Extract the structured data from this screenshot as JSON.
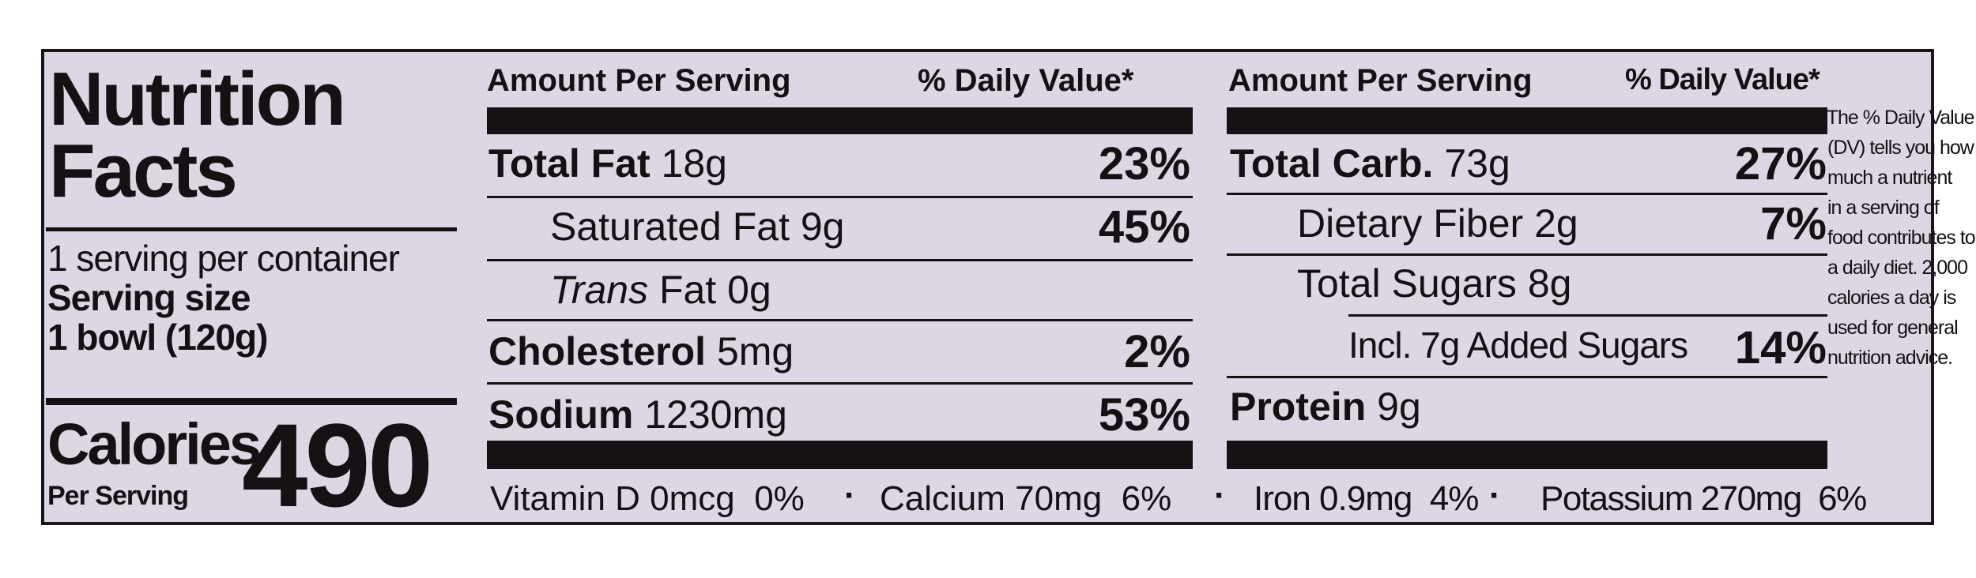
{
  "title": "Nutrition Facts",
  "servings_per_container": "1 serving per container",
  "serving_size_label": "Serving size",
  "serving_size_value": "1 bowl (120g)",
  "calories": {
    "label": "Calories",
    "sublabel": "Per Serving",
    "value": "490"
  },
  "columns": {
    "left": {
      "amount_header": "Amount Per Serving",
      "dv_header": "% Daily Value*"
    },
    "right": {
      "amount_header": "Amount Per Serving",
      "dv_header": "% Daily Value*"
    }
  },
  "nutrients_left": [
    {
      "name": "Total Fat",
      "amount": "18g",
      "dv": "23%"
    },
    {
      "name": "Saturated Fat",
      "amount": "9g",
      "dv": "45%"
    },
    {
      "name": "Trans",
      "name_rest": "Fat",
      "amount": "0g",
      "dv": ""
    },
    {
      "name": "Cholesterol",
      "amount": "5mg",
      "dv": "2%"
    },
    {
      "name": "Sodium",
      "amount": "1230mg",
      "dv": "53%"
    }
  ],
  "nutrients_right": [
    {
      "name": "Total Carb.",
      "amount": "73g",
      "dv": "27%"
    },
    {
      "name": "Dietary Fiber",
      "amount": "2g",
      "dv": "7%"
    },
    {
      "name": "Total Sugars",
      "amount": "8g",
      "dv": ""
    },
    {
      "name": "Incl. 7g Added Sugars",
      "amount": "",
      "dv": "14%"
    },
    {
      "name": "Protein",
      "amount": "9g",
      "dv": ""
    }
  ],
  "vitamins": [
    {
      "text": "Vitamin D 0mcg",
      "dv": "0%"
    },
    {
      "text": "Calcium 70mg",
      "dv": "6%"
    },
    {
      "text": "Iron 0.9mg",
      "dv": "4%"
    },
    {
      "text": "Potassium 270mg",
      "dv": "6%"
    }
  ],
  "separator": "·",
  "footnote": [
    "*The % Daily Value",
    "(DV) tells you how",
    "much a nutrient",
    "in a serving of",
    "food contributes to",
    "a daily diet. 2,000",
    "calories a day is",
    "used for general",
    "nutrition advice."
  ],
  "colors": {
    "background": "#ddd7e3",
    "ink": "#141014",
    "page": "#ffffff"
  }
}
